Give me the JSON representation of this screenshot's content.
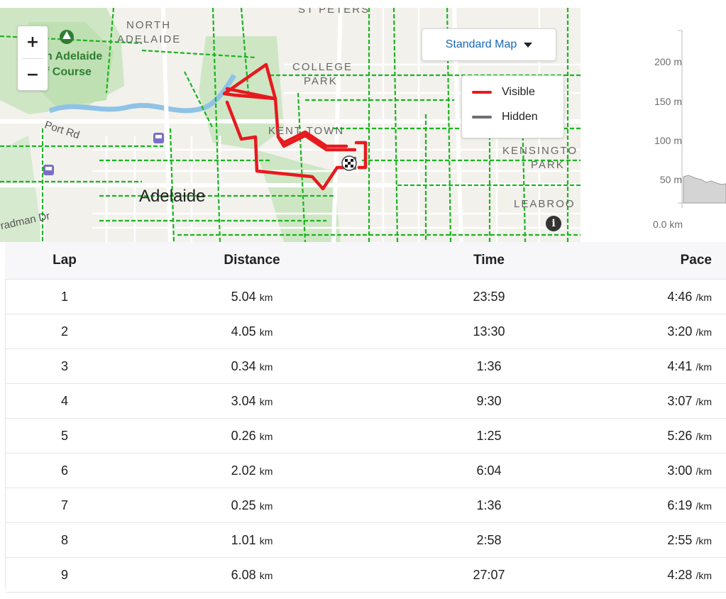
{
  "map": {
    "map_type_label": "Standard Map",
    "zoom_in": "+",
    "zoom_out": "−",
    "info": "i",
    "legend": {
      "visible_label": "Visible",
      "hidden_label": "Hidden",
      "visible_color": "#e8191e",
      "hidden_color": "#6e6e73"
    },
    "labels": {
      "st_peters": "ST PETERS",
      "north_adelaide_1": "NORTH",
      "north_adelaide_2": "ADELAIDE",
      "golf_1": "h Adelaide",
      "golf_2": "f Course",
      "college_1": "COLLEGE",
      "college_2": "PARK",
      "kent_town": "KENT TOWN",
      "kensington_1": "KENSINGTO",
      "kensington_2": "PARK",
      "port_rd": "Port Rd",
      "city": "Adelaide",
      "bradman": "radman Dr",
      "leabrook": "LEABROO"
    },
    "colors": {
      "route": "#e8191e",
      "cycleway": "#19b51f",
      "park": "#cfe6c5",
      "river": "#8fc3e6"
    }
  },
  "elevation": {
    "y_ticks": [
      "200 m",
      "150 m",
      "100 m",
      "50 m"
    ],
    "x_tick": "0.0 km"
  },
  "laps": {
    "headers": {
      "lap": "Lap",
      "distance": "Distance",
      "time": "Time",
      "pace": "Pace"
    },
    "distance_unit": "km",
    "pace_unit": "/km",
    "rows": [
      {
        "lap": "1",
        "distance": "5.04",
        "time": "23:59",
        "pace": "4:46"
      },
      {
        "lap": "2",
        "distance": "4.05",
        "time": "13:30",
        "pace": "3:20"
      },
      {
        "lap": "3",
        "distance": "0.34",
        "time": "1:36",
        "pace": "4:41"
      },
      {
        "lap": "4",
        "distance": "3.04",
        "time": "9:30",
        "pace": "3:07"
      },
      {
        "lap": "5",
        "distance": "0.26",
        "time": "1:25",
        "pace": "5:26"
      },
      {
        "lap": "6",
        "distance": "2.02",
        "time": "6:04",
        "pace": "3:00"
      },
      {
        "lap": "7",
        "distance": "0.25",
        "time": "1:36",
        "pace": "6:19"
      },
      {
        "lap": "8",
        "distance": "1.01",
        "time": "2:58",
        "pace": "2:55"
      },
      {
        "lap": "9",
        "distance": "6.08",
        "time": "27:07",
        "pace": "4:28"
      }
    ]
  }
}
